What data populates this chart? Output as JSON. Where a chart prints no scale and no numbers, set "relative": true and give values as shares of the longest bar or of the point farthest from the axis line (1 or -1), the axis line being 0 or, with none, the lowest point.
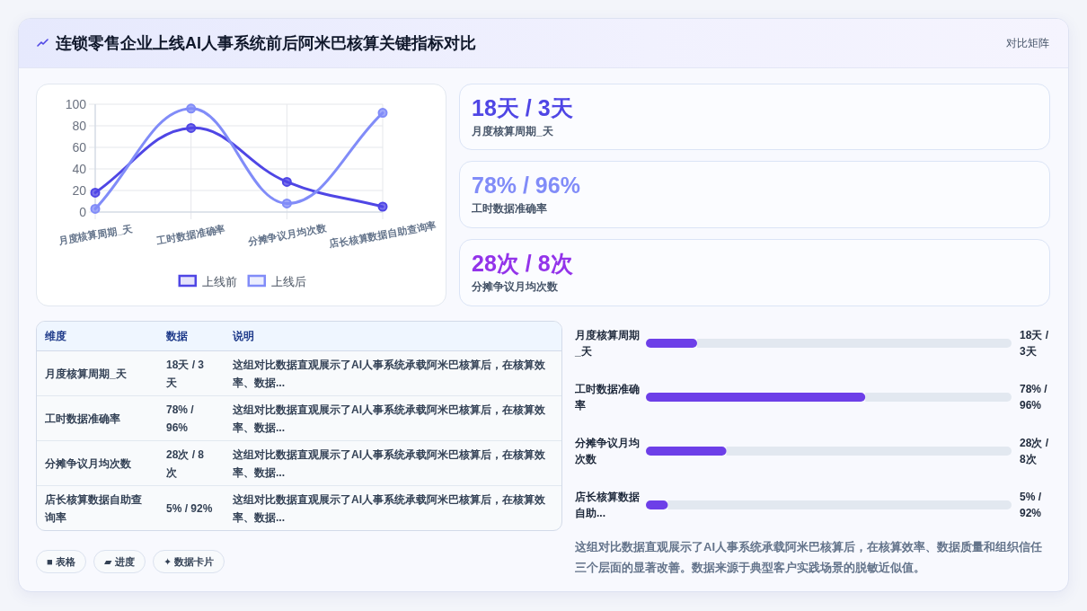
{
  "chart_data": [
    {
      "type": "other",
      "title": "连锁零售企业上线AI人事系统前后阿米巴核算关键指标对比",
      "subtitle": "对比矩阵"
    },
    {
      "type": "line",
      "categories": [
        "月度核算周期_天",
        "工时数据准确率",
        "分摊争议月均次数",
        "店长核算数据自助查询率"
      ],
      "series": [
        {
          "name": "上线前",
          "color": "#4f46e5",
          "values": [
            18,
            78,
            28,
            5
          ]
        },
        {
          "name": "上线后",
          "color": "#818cf8",
          "values": [
            3,
            96,
            8,
            92
          ]
        }
      ],
      "ylim": [
        0,
        100
      ],
      "yticks": [
        0,
        20,
        40,
        60,
        80,
        100
      ],
      "grid": true,
      "legend": "bottom",
      "marker": "circle"
    },
    {
      "type": "other",
      "title": "18天 / 3天",
      "subtitle": "月度核算周期_天",
      "color": "#4f46e5"
    },
    {
      "type": "other",
      "title": "78% / 96%",
      "subtitle": "工时数据准确率",
      "color": "#818cf8"
    },
    {
      "type": "other",
      "title": "28次 / 8次",
      "subtitle": "分摊争议月均次数",
      "color": "#9333ea"
    },
    {
      "type": "other",
      "categories": [
        "维度",
        "数据",
        "说明"
      ],
      "cell_labels": [
        [
          "月度核算周期_天",
          "18天 / 3天",
          "这组对比数据直观展示了AI人事系统承载阿米巴核算后，在核算效率、数据..."
        ],
        [
          "工时数据准确率",
          "78% / 96%",
          "这组对比数据直观展示了AI人事系统承载阿米巴核算后，在核算效率、数据..."
        ],
        [
          "分摊争议月均次数",
          "28次 / 8次",
          "这组对比数据直观展示了AI人事系统承载阿米巴核算后，在核算效率、数据..."
        ],
        [
          "店长核算数据自助查询率",
          "5% / 92%",
          "这组对比数据直观展示了AI人事系统承载阿米巴核算后，在核算效率、数据..."
        ]
      ],
      "annotations": [
        "■ 表格",
        "▰ 进度",
        "✦ 数据卡片"
      ]
    },
    {
      "type": "bar",
      "orientation": "horizontal",
      "stacked": true,
      "relative": true,
      "categories": [
        "月度核算周期_天",
        "工时数据准确率",
        "分摊争议月均次数",
        "店长核算数据自助..."
      ],
      "series": [
        {
          "color": "#6d3fe8",
          "values": [
            0.14,
            0.6,
            0.22,
            0.06
          ]
        },
        {
          "color": "#e2e8f0",
          "values": [
            0.86,
            0.4,
            0.78,
            0.94
          ]
        }
      ],
      "annotations": [
        "18天 / 3天",
        "78% / 96%",
        "28次 / 8次",
        "5% / 92%",
        "这组对比数据直观展示了AI人事系统承载阿米巴核算后，在核算效率、数据质量和组织信任三个层面的显著改善。数据来源于典型客户实践场景的脱敏近似值。"
      ]
    }
  ]
}
